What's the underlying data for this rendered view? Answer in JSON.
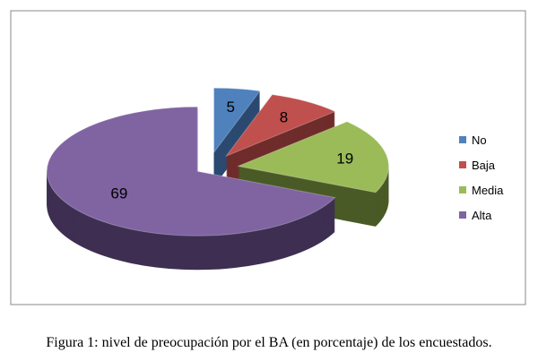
{
  "chart_data": {
    "type": "pie",
    "style": "3d-exploded",
    "categories": [
      "No",
      "Baja",
      "Media",
      "Alta"
    ],
    "values": [
      5,
      8,
      19,
      69
    ],
    "data_labels": [
      "5",
      "8",
      "19",
      "69"
    ],
    "colors": [
      "#4F81BD",
      "#C0504D",
      "#9BBB59",
      "#8064A2"
    ],
    "side_colors": [
      "#2c4a70",
      "#6e2c2a",
      "#4a5a26",
      "#3e2f52"
    ],
    "legend_position": "right",
    "title": ""
  },
  "caption": "Figura 1: nivel de preocupación por el BA (en porcentaje) de los encuestados."
}
